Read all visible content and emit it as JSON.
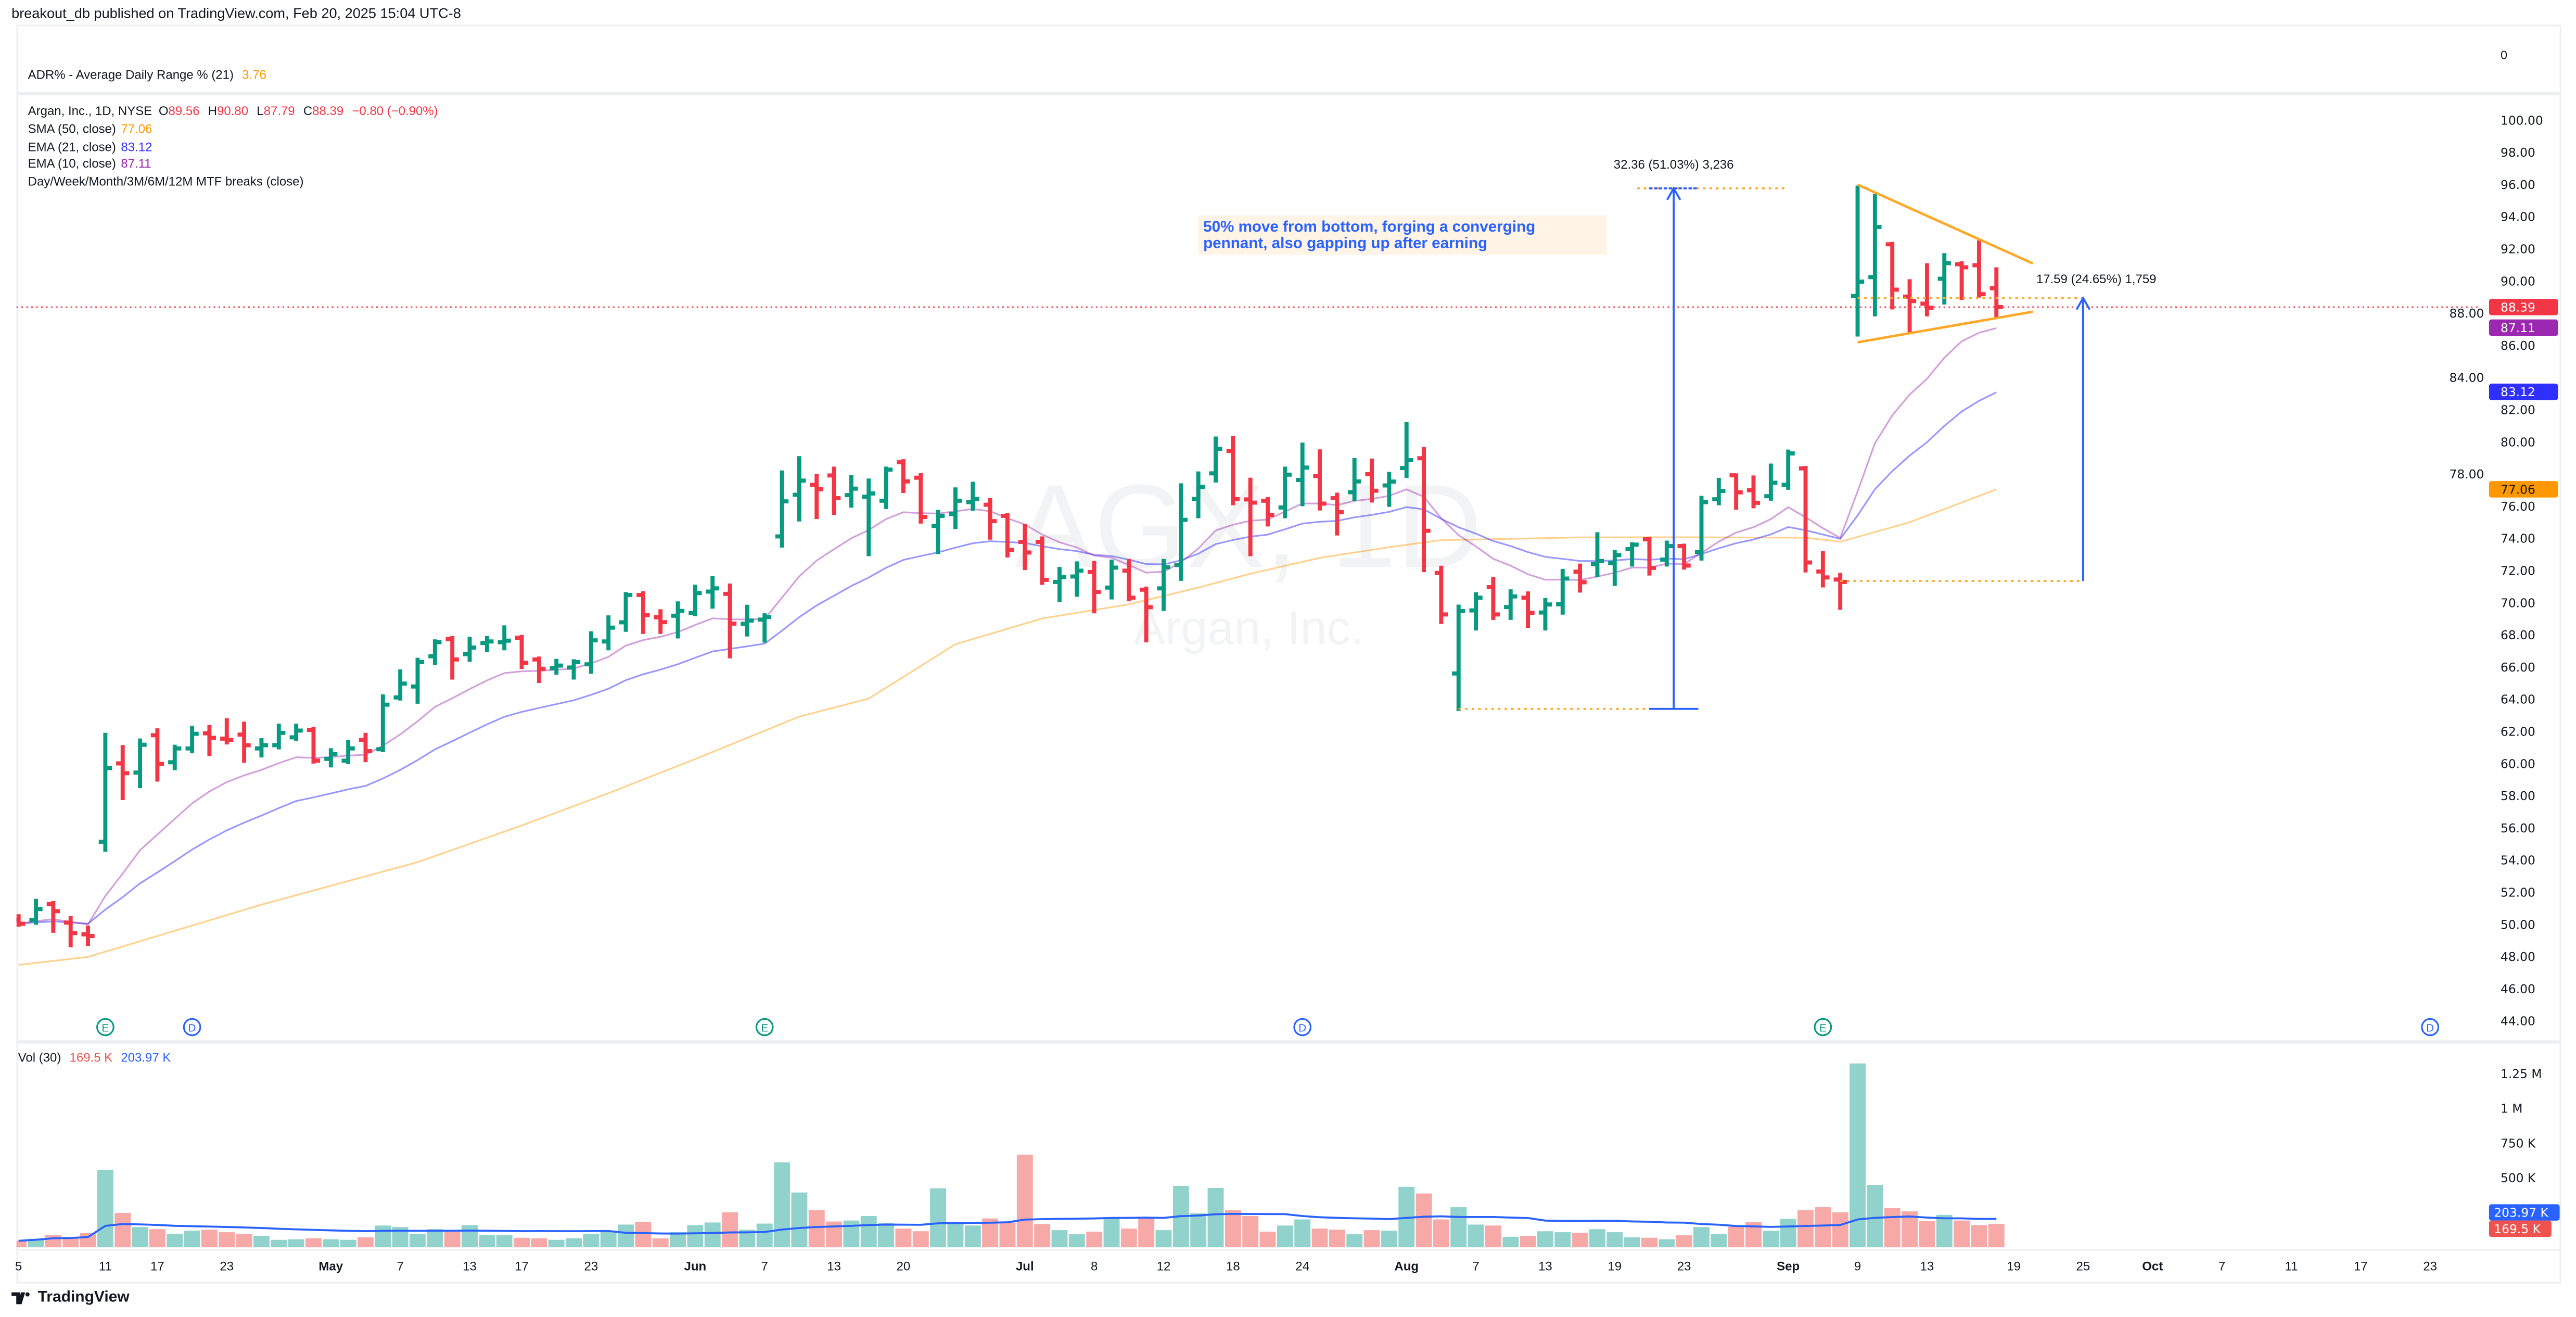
{
  "header": {
    "published": "breakout_db published on TradingView.com, Feb 20, 2025 15:04 UTC-8"
  },
  "adr_pane": {
    "label": "ADR% - Average Daily Range % (21)",
    "value": "3.76",
    "axis_value": "0",
    "value_color": "#ff9800"
  },
  "legend": {
    "symbol": "Argan, Inc., 1D, NYSE",
    "o_label": "O",
    "o": "89.56",
    "h_label": "H",
    "h": "90.80",
    "l_label": "L",
    "l": "87.79",
    "c_label": "C",
    "c": "88.39",
    "change": "−0.80 (−0.90%)",
    "sma50_label": "SMA (50, close)",
    "sma50": "77.06",
    "ema21_label": "EMA (21, close)",
    "ema21": "83.12",
    "ema10_label": "EMA (10, close)",
    "ema10": "87.11",
    "mtf_label": "Day/Week/Month/3M/6M/12M MTF breaks (close)"
  },
  "watermark": {
    "symbol": "AGX, 1D",
    "name": "Argan, Inc."
  },
  "colors": {
    "up": "#089981",
    "down": "#f23645",
    "vol_up": "#92d2cc",
    "vol_down": "#f7a9a7",
    "sma50": "#ff9800",
    "ema21": "#2f2fff",
    "ema10": "#9c27b0",
    "vol_ma": "#2962ff",
    "annotation": "#2962ff",
    "pennant": "#ffa726"
  },
  "price_badges": [
    {
      "label": "88.39",
      "value": 88.39,
      "bg": "#f23645",
      "fg": "#ffffff"
    },
    {
      "label": "87.11",
      "value": 87.11,
      "bg": "#9c27b0",
      "fg": "#ffffff"
    },
    {
      "label": "83.12",
      "value": 83.12,
      "bg": "#2f2fff",
      "fg": "#ffffff"
    },
    {
      "label": "77.06",
      "value": 77.06,
      "bg": "#ff9800",
      "fg": "#131722"
    }
  ],
  "volume_legend": {
    "label": "Vol (30)",
    "volume": "169.5 K",
    "ma": "203.97 K"
  },
  "volume_badges": [
    {
      "label": "203.97 K",
      "value": 203.97,
      "bg": "#2962ff"
    },
    {
      "label": "169.5 K",
      "value": 169.5,
      "bg": "#ef5350"
    }
  ],
  "annotations": {
    "measure_1": {
      "label": "32.36 (51.03%) 3,236",
      "from": 63.41,
      "to": 95.77,
      "bar": 96.4,
      "low_line": [
        84,
        98
      ],
      "high_line": [
        94.3,
        103
      ]
    },
    "measure_2": {
      "label": "17.59 (24.65%) 1,759",
      "from": 71.36,
      "to": 88.95,
      "bar": 120,
      "low_line": [
        106,
        120
      ],
      "high_line": [
        107,
        120
      ]
    },
    "pennant": {
      "upper": [
        [
          107,
          96.0
        ],
        [
          117.1,
          91.1
        ]
      ],
      "lower": [
        [
          107,
          86.2
        ],
        [
          117.1,
          88.1
        ]
      ]
    },
    "note": {
      "text": "50% move from bottom, forging a converging pennant, also gapping up after earning",
      "bar_from": 69,
      "bar_to": 92.5,
      "price_top": 94.1,
      "price_bottom": 91.6
    }
  },
  "events": [
    {
      "type": "E",
      "bar": 6
    },
    {
      "type": "D",
      "bar": 11
    },
    {
      "type": "E",
      "bar": 44
    },
    {
      "type": "D",
      "bar": 75
    },
    {
      "type": "E",
      "bar": 105
    },
    {
      "type": "D",
      "bar": 140
    }
  ],
  "branding": {
    "logo": "TradingView"
  },
  "chart_data": {
    "type": "ohlc",
    "title": "Argan, Inc., 1D, NYSE",
    "ylim": [
      43.1,
      101.0
    ],
    "yticks": [
      44,
      46,
      48,
      50,
      52,
      54,
      56,
      58,
      60,
      62,
      64,
      66,
      68,
      70,
      72,
      74,
      76,
      78,
      80,
      82,
      84,
      86,
      88,
      90,
      92,
      94,
      96,
      98,
      100
    ],
    "x_ticks": [
      {
        "label": "5",
        "bar": 1
      },
      {
        "label": "11",
        "bar": 6
      },
      {
        "label": "17",
        "bar": 9
      },
      {
        "label": "23",
        "bar": 13
      },
      {
        "label": "May",
        "bar": 19,
        "month": true
      },
      {
        "label": "7",
        "bar": 23
      },
      {
        "label": "13",
        "bar": 27
      },
      {
        "label": "17",
        "bar": 30
      },
      {
        "label": "23",
        "bar": 34
      },
      {
        "label": "Jun",
        "bar": 40,
        "month": true
      },
      {
        "label": "7",
        "bar": 44
      },
      {
        "label": "13",
        "bar": 48
      },
      {
        "label": "20",
        "bar": 52
      },
      {
        "label": "Jul",
        "bar": 59,
        "month": true
      },
      {
        "label": "8",
        "bar": 63
      },
      {
        "label": "12",
        "bar": 67
      },
      {
        "label": "18",
        "bar": 71
      },
      {
        "label": "24",
        "bar": 75
      },
      {
        "label": "Aug",
        "bar": 81,
        "month": true
      },
      {
        "label": "7",
        "bar": 85
      },
      {
        "label": "13",
        "bar": 89
      },
      {
        "label": "19",
        "bar": 93
      },
      {
        "label": "23",
        "bar": 97
      },
      {
        "label": "Sep",
        "bar": 103,
        "month": true
      },
      {
        "label": "9",
        "bar": 107
      },
      {
        "label": "13",
        "bar": 111
      },
      {
        "label": "19",
        "bar": 116
      },
      {
        "label": "25",
        "bar": 120
      },
      {
        "label": "Oct",
        "bar": 124,
        "month": true
      },
      {
        "label": "7",
        "bar": 128
      },
      {
        "label": "11",
        "bar": 132
      },
      {
        "label": "17",
        "bar": 136
      },
      {
        "label": "23",
        "bar": 140
      }
    ],
    "ohlc": [
      [
        50.3,
        50.58,
        49.92,
        50.05
      ],
      [
        50.28,
        51.54,
        50.05,
        50.96
      ],
      [
        51.27,
        51.4,
        49.55,
        50.83
      ],
      [
        50.12,
        50.46,
        48.65,
        49.47
      ],
      [
        49.39,
        49.88,
        48.73,
        49.29
      ],
      [
        55.15,
        61.86,
        54.59,
        59.73
      ],
      [
        60.02,
        61.1,
        57.8,
        59.41
      ],
      [
        59.45,
        61.51,
        58.54,
        61.18
      ],
      [
        61.77,
        62.14,
        58.95,
        59.99
      ],
      [
        60.09,
        61.12,
        59.66,
        60.95
      ],
      [
        60.95,
        62.3,
        60.73,
        61.86
      ],
      [
        61.89,
        62.35,
        60.54,
        61.61
      ],
      [
        61.56,
        62.77,
        61.26,
        61.48
      ],
      [
        61.81,
        62.55,
        60.12,
        61.15
      ],
      [
        60.95,
        61.53,
        60.45,
        61.15
      ],
      [
        61.15,
        62.43,
        60.95,
        61.92
      ],
      [
        61.64,
        62.43,
        61.48,
        62.06
      ],
      [
        62.1,
        62.22,
        60.07,
        60.19
      ],
      [
        60.3,
        60.9,
        59.83,
        60.6
      ],
      [
        60.19,
        61.43,
        60.04,
        60.95
      ],
      [
        61.48,
        61.86,
        60.16,
        60.78
      ],
      [
        60.9,
        64.25,
        60.78,
        63.67
      ],
      [
        64.12,
        65.8,
        63.99,
        64.98
      ],
      [
        64.8,
        66.53,
        63.79,
        66.32
      ],
      [
        66.68,
        67.67,
        66.2,
        67.55
      ],
      [
        67.75,
        67.88,
        65.29,
        66.48
      ],
      [
        66.81,
        67.83,
        66.4,
        67.22
      ],
      [
        67.5,
        67.88,
        67.01,
        67.6
      ],
      [
        67.55,
        68.54,
        67.11,
        67.65
      ],
      [
        67.83,
        67.95,
        65.95,
        66.27
      ],
      [
        66.48,
        66.6,
        65.08,
        65.9
      ],
      [
        65.95,
        66.46,
        65.6,
        66.1
      ],
      [
        65.98,
        66.43,
        65.29,
        66.32
      ],
      [
        66.18,
        68.17,
        65.65,
        67.67
      ],
      [
        67.6,
        69.16,
        67.11,
        68.46
      ],
      [
        68.79,
        70.61,
        68.26,
        70.49
      ],
      [
        70.49,
        70.66,
        68.13,
        69.24
      ],
      [
        69.1,
        69.54,
        68.13,
        68.8
      ],
      [
        69.2,
        70.03,
        67.85,
        69.5
      ],
      [
        69.37,
        71.07,
        69.24,
        70.61
      ],
      [
        70.7,
        71.6,
        69.7,
        70.9
      ],
      [
        70.56,
        71.14,
        66.61,
        68.71
      ],
      [
        68.7,
        69.82,
        67.97,
        68.9
      ],
      [
        68.96,
        69.29,
        67.59,
        69.12
      ],
      [
        74.13,
        78.17,
        73.5,
        76.31
      ],
      [
        76.72,
        79.06,
        75.12,
        77.6
      ],
      [
        77.34,
        77.95,
        75.27,
        77.06
      ],
      [
        77.92,
        78.41,
        75.52,
        76.51
      ],
      [
        76.7,
        77.87,
        75.98,
        77.1
      ],
      [
        76.6,
        77.67,
        72.96,
        76.8
      ],
      [
        76.35,
        78.41,
        75.9,
        78.28
      ],
      [
        78.74,
        78.87,
        76.89,
        77.55
      ],
      [
        77.78,
        78.0,
        74.99,
        75.34
      ],
      [
        74.78,
        75.72,
        73.09,
        75.41
      ],
      [
        75.52,
        77.12,
        74.65,
        76.35
      ],
      [
        76.26,
        77.47,
        75.79,
        76.46
      ],
      [
        76.1,
        76.46,
        73.99,
        75.08
      ],
      [
        75.41,
        75.52,
        72.88,
        73.29
      ],
      [
        73.79,
        74.84,
        72.1,
        73.13
      ],
      [
        73.79,
        74.07,
        71.18,
        71.43
      ],
      [
        71.3,
        72.17,
        70.11,
        71.6
      ],
      [
        71.64,
        72.52,
        70.44,
        72.0
      ],
      [
        71.92,
        72.55,
        69.41,
        70.68
      ],
      [
        70.95,
        72.63,
        70.27,
        72.19
      ],
      [
        72.0,
        72.67,
        70.16,
        70.32
      ],
      [
        70.82,
        70.95,
        67.6,
        69.73
      ],
      [
        70.9,
        72.67,
        69.56,
        72.22
      ],
      [
        72.35,
        77.37,
        71.43,
        75.16
      ],
      [
        76.46,
        78.11,
        75.32,
        77.21
      ],
      [
        78.05,
        80.28,
        77.54,
        79.57
      ],
      [
        79.44,
        80.31,
        76.13,
        76.46
      ],
      [
        76.43,
        77.72,
        72.96,
        76.23
      ],
      [
        76.35,
        76.51,
        74.81,
        75.47
      ],
      [
        75.93,
        78.41,
        75.32,
        77.97
      ],
      [
        77.64,
        79.9,
        76.07,
        78.41
      ],
      [
        77.88,
        79.48,
        75.8,
        76.17
      ],
      [
        76.51,
        76.79,
        74.25,
        75.64
      ],
      [
        76.88,
        78.94,
        76.4,
        77.55
      ],
      [
        78.0,
        78.91,
        76.3,
        76.97
      ],
      [
        77.3,
        78.08,
        76.03,
        77.54
      ],
      [
        78.38,
        81.17,
        77.83,
        78.87
      ],
      [
        78.99,
        79.62,
        71.97,
        74.48
      ],
      [
        71.86,
        72.25,
        68.75,
        69.28
      ],
      [
        65.61,
        69.83,
        63.34,
        69.49
      ],
      [
        69.53,
        70.6,
        68.34,
        70.32
      ],
      [
        70.98,
        71.56,
        69.0,
        69.28
      ],
      [
        69.74,
        70.78,
        69.0,
        70.4
      ],
      [
        70.32,
        70.65,
        68.5,
        69.38
      ],
      [
        69.4,
        70.24,
        68.34,
        69.9
      ],
      [
        69.91,
        72.05,
        69.33,
        71.51
      ],
      [
        71.94,
        72.38,
        70.7,
        71.28
      ],
      [
        72.4,
        74.33,
        71.67,
        72.6
      ],
      [
        72.47,
        73.21,
        71.11,
        72.97
      ],
      [
        73.34,
        73.71,
        72.32,
        73.62
      ],
      [
        73.95,
        74.05,
        71.76,
        72.17
      ],
      [
        72.69,
        73.81,
        72.32,
        73.53
      ],
      [
        73.53,
        73.62,
        72.13,
        72.32
      ],
      [
        73.16,
        76.59,
        72.69,
        76.26
      ],
      [
        76.44,
        77.71,
        76.13,
        76.96
      ],
      [
        77.93,
        77.99,
        75.85,
        76.87
      ],
      [
        77.0,
        77.86,
        75.94,
        76.22
      ],
      [
        76.63,
        78.6,
        76.41,
        77.47
      ],
      [
        77.34,
        79.47,
        77.09,
        79.29
      ],
      [
        78.36,
        78.45,
        71.95,
        72.51
      ],
      [
        71.95,
        73.16,
        71.02,
        71.58
      ],
      [
        71.45,
        71.8,
        69.63,
        71.3
      ],
      [
        89.08,
        95.88,
        86.62,
        89.97
      ],
      [
        90.25,
        95.36,
        87.87,
        93.37
      ],
      [
        92.29,
        92.38,
        88.3,
        89.47
      ],
      [
        89.04,
        90.06,
        86.81,
        88.76
      ],
      [
        88.6,
        91.05,
        87.87,
        88.35
      ],
      [
        90.15,
        91.68,
        88.61,
        91.12
      ],
      [
        91.05,
        91.17,
        88.89,
        90.86
      ],
      [
        90.99,
        92.48,
        89.04,
        89.19
      ],
      [
        89.56,
        90.8,
        87.79,
        88.39
      ]
    ],
    "volume_k": [
      47,
      62,
      87,
      72,
      102,
      557,
      248,
      146,
      131,
      98,
      120,
      127,
      109,
      98,
      83,
      54,
      58,
      65,
      58,
      54,
      72,
      157,
      146,
      98,
      131,
      116,
      160,
      87,
      87,
      69,
      65,
      54,
      65,
      98,
      120,
      164,
      184,
      65,
      109,
      160,
      179,
      252,
      127,
      171,
      612,
      395,
      267,
      186,
      193,
      226,
      175,
      135,
      116,
      425,
      168,
      157,
      208,
      181,
      667,
      168,
      124,
      94,
      113,
      208,
      135,
      219,
      124,
      443,
      245,
      428,
      267,
      226,
      113,
      157,
      201,
      135,
      127,
      94,
      124,
      120,
      436,
      388,
      201,
      289,
      164,
      157,
      76,
      83,
      116,
      109,
      105,
      131,
      109,
      72,
      69,
      58,
      87,
      146,
      98,
      149,
      182,
      120,
      204,
      267,
      289,
      252,
      1324,
      450,
      282,
      259,
      190,
      234,
      193,
      160,
      169.5
    ],
    "volume_ticks": [
      {
        "label": "500 K",
        "value": 500
      },
      {
        "label": "750 K",
        "value": 750
      },
      {
        "label": "1 M",
        "value": 1000
      },
      {
        "label": "1.25 M",
        "value": 1250
      }
    ],
    "sma50_samples": [
      [
        1,
        47.49
      ],
      [
        5,
        47.99
      ],
      [
        15,
        51.24
      ],
      [
        24,
        53.88
      ],
      [
        30,
        56.16
      ],
      [
        35,
        58.17
      ],
      [
        40,
        60.29
      ],
      [
        46,
        62.93
      ],
      [
        50,
        64.05
      ],
      [
        55,
        67.43
      ],
      [
        60,
        69.03
      ],
      [
        65,
        69.91
      ],
      [
        69,
        70.95
      ],
      [
        72,
        71.81
      ],
      [
        76,
        72.8
      ],
      [
        80,
        73.46
      ],
      [
        83,
        73.9
      ],
      [
        88,
        74.0
      ],
      [
        91,
        74.07
      ],
      [
        97,
        74.08
      ],
      [
        104,
        74.05
      ],
      [
        106,
        73.8
      ],
      [
        110,
        75.01
      ],
      [
        115,
        77.06
      ]
    ]
  }
}
